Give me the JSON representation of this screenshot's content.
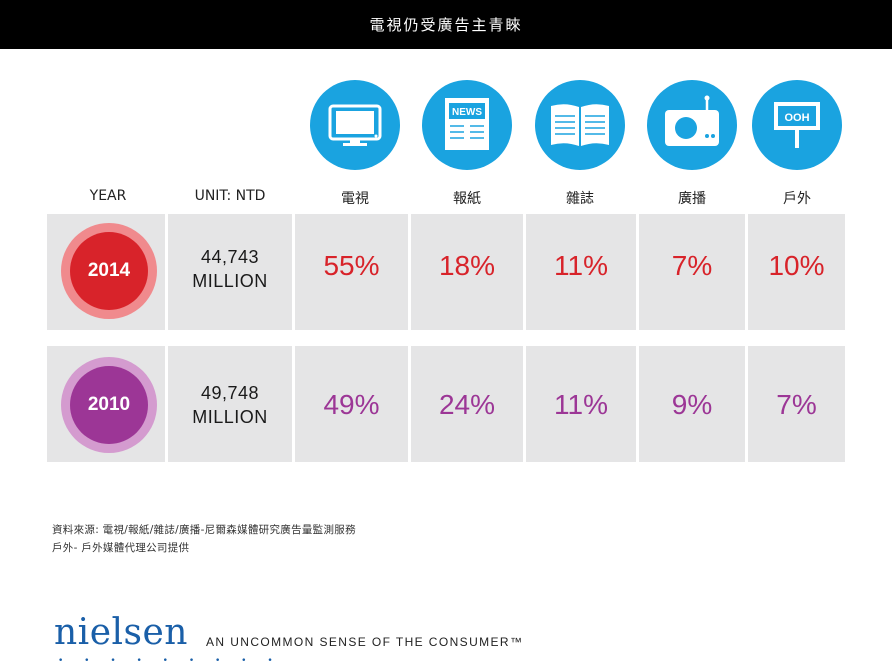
{
  "header": {
    "title": "電視仍受廣告主青睞"
  },
  "columns": {
    "year": "YEAR",
    "unit": "UNIT: NTD",
    "media": [
      "電視",
      "報紙",
      "雜誌",
      "廣播",
      "戶外"
    ]
  },
  "icons": [
    "tv-icon",
    "newspaper-icon",
    "magazine-icon",
    "radio-icon",
    "billboard-icon"
  ],
  "icon_labels": {
    "news": "NEWS",
    "ooh": "OOH"
  },
  "colors": {
    "header_bg": "#000000",
    "icon_blue": "#1aa3e0",
    "red": "#d8232a",
    "purple": "#9c3696",
    "row_bg": "#e5e5e6"
  },
  "chart_data": {
    "type": "table",
    "title": "電視仍受廣告主青睞",
    "categories": [
      "電視",
      "報紙",
      "雜誌",
      "廣播",
      "戶外"
    ],
    "unit": "NTD",
    "rows": [
      {
        "year": "2014",
        "total": "44,743",
        "total_unit": "MILLION",
        "values": [
          "55%",
          "18%",
          "11%",
          "7%",
          "10%"
        ]
      },
      {
        "year": "2010",
        "total": "49,748",
        "total_unit": "MILLION",
        "values": [
          "49%",
          "24%",
          "11%",
          "9%",
          "7%"
        ]
      }
    ]
  },
  "footer": {
    "source_line1": "資料來源: 電視/報紙/雜誌/廣播-尼爾森媒體研究廣告量監測服務",
    "source_line2": "戶外- 戶外媒體代理公司提供",
    "logo": "nielsen",
    "tagline": "AN UNCOMMON SENSE OF THE CONSUMER™"
  }
}
